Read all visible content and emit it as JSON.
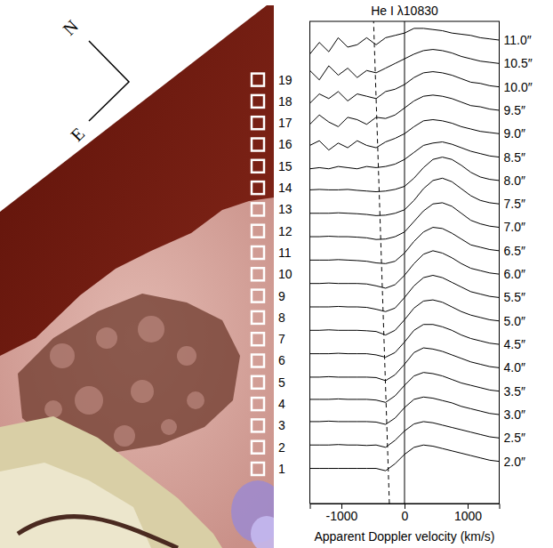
{
  "chart_data": {
    "type": "line",
    "title": "He I λ10830",
    "x_label": "Apparent Doppler velocity (km/s)",
    "x": [
      -1500,
      -1350,
      -1200,
      -1050,
      -900,
      -750,
      -600,
      -450,
      -300,
      -150,
      0,
      150,
      300,
      450,
      600,
      750,
      900,
      1050,
      1200,
      1350,
      1500
    ],
    "xlim": [
      -1500,
      1500
    ],
    "xticks": [
      -1000,
      0,
      1000
    ],
    "ylim": [
      0,
      20.6
    ],
    "tick_labels": "x",
    "series": [
      {
        "name": "2.0″",
        "color": "#000000",
        "values": [
          1.5,
          1.5,
          1.5,
          1.5,
          1.5,
          1.5,
          1.5,
          1.5,
          1.4,
          1.7,
          2.1,
          2.4,
          2.5,
          2.45,
          2.35,
          2.25,
          2.15,
          2.05,
          1.95,
          1.85,
          1.8
        ]
      },
      {
        "name": "2.5″",
        "color": "#000000",
        "values": [
          2.5,
          2.5,
          2.5,
          2.52,
          2.5,
          2.5,
          2.48,
          2.5,
          2.4,
          2.7,
          3.1,
          3.4,
          3.5,
          3.45,
          3.35,
          3.25,
          3.15,
          3.05,
          2.95,
          2.85,
          2.8
        ]
      },
      {
        "name": "3.0″",
        "color": "#000000",
        "values": [
          3.5,
          3.5,
          3.52,
          3.5,
          3.5,
          3.5,
          3.5,
          3.48,
          3.38,
          3.65,
          4.1,
          4.45,
          4.55,
          4.5,
          4.4,
          4.3,
          4.15,
          4.05,
          3.95,
          3.85,
          3.8
        ]
      },
      {
        "name": "3.5″",
        "color": "#000000",
        "values": [
          4.45,
          4.45,
          4.45,
          4.47,
          4.45,
          4.45,
          4.45,
          4.42,
          4.32,
          4.6,
          5.05,
          5.45,
          5.6,
          5.55,
          5.45,
          5.3,
          5.15,
          5.05,
          4.95,
          4.85,
          4.8
        ]
      },
      {
        "name": "4.0″",
        "color": "#000000",
        "values": [
          5.4,
          5.4,
          5.42,
          5.4,
          5.4,
          5.4,
          5.4,
          5.38,
          5.25,
          5.5,
          5.95,
          6.45,
          6.65,
          6.6,
          6.5,
          6.35,
          6.2,
          6.05,
          5.95,
          5.85,
          5.8
        ]
      },
      {
        "name": "4.5″",
        "color": "#000000",
        "values": [
          6.4,
          6.4,
          6.4,
          6.42,
          6.4,
          6.4,
          6.4,
          6.35,
          6.25,
          6.45,
          6.9,
          7.4,
          7.65,
          7.65,
          7.55,
          7.4,
          7.2,
          7.05,
          6.95,
          6.85,
          6.8
        ]
      },
      {
        "name": "5.0″",
        "color": "#000000",
        "values": [
          7.4,
          7.4,
          7.42,
          7.4,
          7.4,
          7.4,
          7.38,
          7.35,
          7.2,
          7.4,
          7.85,
          8.35,
          8.65,
          8.7,
          8.6,
          8.4,
          8.2,
          8.05,
          7.95,
          7.85,
          7.8
        ]
      },
      {
        "name": "5.5″",
        "color": "#000000",
        "values": [
          8.4,
          8.4,
          8.4,
          8.42,
          8.4,
          8.4,
          8.38,
          8.3,
          8.2,
          8.35,
          8.8,
          9.3,
          9.65,
          9.75,
          9.65,
          9.45,
          9.25,
          9.05,
          8.95,
          8.85,
          8.8
        ]
      },
      {
        "name": "6.0″",
        "color": "#000000",
        "values": [
          9.4,
          9.4,
          9.42,
          9.4,
          9.4,
          9.4,
          9.38,
          9.3,
          9.2,
          9.35,
          9.75,
          10.25,
          10.65,
          10.8,
          10.7,
          10.5,
          10.25,
          10.05,
          9.95,
          9.85,
          9.8
        ]
      },
      {
        "name": "6.5″",
        "color": "#000000",
        "values": [
          10.4,
          10.4,
          10.4,
          10.42,
          10.4,
          10.38,
          10.35,
          10.28,
          10.25,
          10.35,
          10.7,
          11.2,
          11.6,
          11.8,
          11.75,
          11.55,
          11.3,
          11.05,
          10.95,
          10.85,
          10.8
        ]
      },
      {
        "name": "7.0″",
        "color": "#000000",
        "values": [
          11.4,
          11.4,
          11.42,
          11.4,
          11.4,
          11.38,
          11.35,
          11.28,
          11.3,
          11.4,
          11.6,
          12.05,
          12.5,
          12.8,
          12.85,
          12.7,
          12.4,
          12.1,
          11.95,
          11.85,
          11.8
        ]
      },
      {
        "name": "7.5″",
        "color": "#000000",
        "values": [
          12.4,
          12.4,
          12.4,
          12.42,
          12.4,
          12.38,
          12.35,
          12.3,
          12.32,
          12.4,
          12.55,
          12.95,
          13.45,
          13.8,
          13.9,
          13.75,
          13.45,
          13.15,
          12.95,
          12.85,
          12.8
        ]
      },
      {
        "name": "8.0″",
        "color": "#000000",
        "values": [
          13.4,
          13.42,
          13.4,
          13.4,
          13.42,
          13.38,
          13.35,
          13.32,
          13.35,
          13.42,
          13.55,
          13.9,
          14.35,
          14.7,
          14.8,
          14.7,
          14.45,
          14.15,
          13.95,
          13.85,
          13.8
        ]
      },
      {
        "name": "8.5″",
        "color": "#000000",
        "values": [
          14.3,
          14.35,
          14.3,
          14.4,
          14.35,
          14.3,
          14.4,
          14.35,
          14.4,
          14.5,
          14.7,
          15.0,
          15.3,
          15.4,
          15.45,
          15.35,
          15.2,
          15.05,
          14.95,
          14.85,
          14.8
        ]
      },
      {
        "name": "9.0″",
        "color": "#000000",
        "values": [
          15.3,
          15.5,
          15.1,
          15.4,
          15.2,
          15.5,
          15.3,
          15.2,
          15.45,
          15.6,
          15.8,
          16.1,
          16.35,
          16.4,
          16.35,
          16.25,
          16.1,
          16.0,
          15.9,
          15.85,
          15.8
        ]
      },
      {
        "name": "9.5″",
        "color": "#000000",
        "values": [
          16.2,
          16.6,
          16.3,
          16.1,
          16.5,
          16.4,
          16.2,
          16.5,
          16.45,
          16.6,
          16.9,
          17.2,
          17.4,
          17.45,
          17.4,
          17.3,
          17.15,
          17.0,
          16.95,
          16.85,
          16.8
        ]
      },
      {
        "name": "10.0″",
        "color": "#000000",
        "values": [
          17.1,
          17.5,
          17.3,
          17.6,
          17.2,
          17.5,
          17.4,
          17.3,
          17.6,
          17.7,
          17.9,
          18.2,
          18.4,
          18.45,
          18.4,
          18.3,
          18.15,
          18.0,
          17.95,
          17.85,
          17.8
        ]
      },
      {
        "name": "10.5″",
        "color": "#000000",
        "values": [
          18.5,
          18.1,
          18.7,
          18.3,
          18.6,
          18.2,
          18.5,
          18.4,
          18.6,
          18.8,
          19.0,
          19.2,
          19.35,
          19.4,
          19.35,
          19.25,
          19.1,
          19.0,
          18.9,
          18.85,
          18.8
        ]
      },
      {
        "name": "11.0″",
        "color": "#000000",
        "values": [
          19.2,
          19.7,
          19.3,
          19.9,
          19.5,
          19.6,
          19.9,
          19.6,
          19.9,
          20.0,
          20.1,
          20.3,
          20.3,
          20.25,
          20.2,
          20.1,
          20.05,
          20.0,
          19.9,
          19.85,
          19.8
        ]
      }
    ],
    "reference_lines": [
      {
        "x": [
          0,
          0
        ],
        "y": [
          0,
          20.6
        ],
        "line_style": "solid"
      },
      {
        "x": [
          -240,
          -490
        ],
        "y": [
          0,
          20.6
        ],
        "line_style": "dashed"
      }
    ]
  },
  "image": {
    "compass": [
      "N",
      "E"
    ],
    "apertures": [
      1,
      2,
      3,
      4,
      5,
      6,
      7,
      8,
      9,
      10,
      11,
      12,
      13,
      14,
      15,
      16,
      17,
      18,
      19
    ]
  }
}
